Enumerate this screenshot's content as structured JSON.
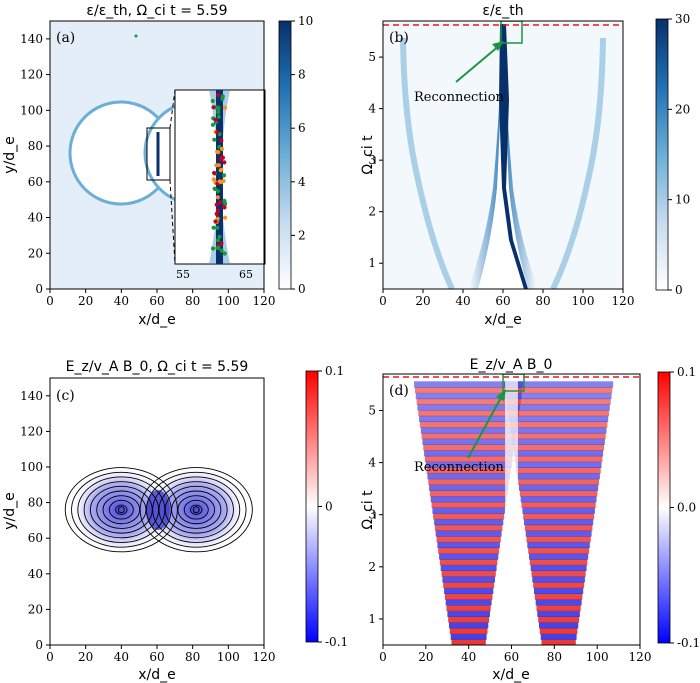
{
  "chart_data": [
    {
      "type": "heatmap",
      "panel_label": "(a)",
      "title": "ε/ε_th, Ω_ci t = 5.59",
      "xlabel": "x/d_e",
      "ylabel": "y/d_e",
      "xlim": [
        0,
        120
      ],
      "ylim": [
        0,
        150
      ],
      "xticks": [
        "0",
        "20",
        "40",
        "60",
        "80",
        "100",
        "120"
      ],
      "yticks": [
        "0",
        "20",
        "40",
        "60",
        "80",
        "100",
        "120",
        "140"
      ],
      "colorbar": {
        "range": [
          0,
          10
        ],
        "ticks": [
          "0",
          "2",
          "4",
          "6",
          "8",
          "10"
        ]
      },
      "colormap": "white-to-#08306b",
      "inset": {
        "xticks": [
          "55",
          "65"
        ]
      }
    },
    {
      "type": "heatmap",
      "panel_label": "(b)",
      "title": "ε/ε_th",
      "xlabel": "x/d_e",
      "ylabel": "Ω_ci t",
      "xlim": [
        0,
        120
      ],
      "ylim": [
        0.5,
        5.7
      ],
      "xticks": [
        "0",
        "20",
        "40",
        "60",
        "80",
        "100",
        "120"
      ],
      "yticks": [
        "1",
        "2",
        "3",
        "4",
        "5"
      ],
      "colorbar": {
        "range": [
          0,
          30
        ],
        "ticks": [
          "0",
          "10",
          "20",
          "30"
        ]
      },
      "colormap": "white-to-#08306b",
      "annotation": "Reconnection",
      "reference_line": {
        "y": 5.59,
        "color": "#e31a1c",
        "style": "dashed"
      }
    },
    {
      "type": "heatmap",
      "panel_label": "(c)",
      "title": "E_z/v_A B_0, Ω_ci t = 5.59",
      "xlabel": "x/d_e",
      "ylabel": "y/d_e",
      "xlim": [
        0,
        120
      ],
      "ylim": [
        0,
        150
      ],
      "xticks": [
        "0",
        "20",
        "40",
        "60",
        "80",
        "100",
        "120"
      ],
      "yticks": [
        "0",
        "20",
        "40",
        "60",
        "80",
        "100",
        "120",
        "140"
      ],
      "colorbar": {
        "range": [
          -0.1,
          0.1
        ],
        "ticks": [
          "-0.1",
          "0",
          "0.1"
        ]
      },
      "colormap": "bwr",
      "contour_centers": [
        [
          40,
          76
        ],
        [
          82,
          76
        ]
      ]
    },
    {
      "type": "heatmap",
      "panel_label": "(d)",
      "title": "E_z/v_A B_0",
      "xlabel": "x/d_e",
      "ylabel": "Ω_ci t",
      "xlim": [
        0,
        120
      ],
      "ylim": [
        0.5,
        5.7
      ],
      "xticks": [
        "0",
        "20",
        "40",
        "60",
        "80",
        "100",
        "120"
      ],
      "yticks": [
        "1",
        "2",
        "3",
        "4",
        "5"
      ],
      "colorbar": {
        "range": [
          -0.1,
          0.1
        ],
        "ticks": [
          "-0.1",
          "0.0",
          "0.1"
        ]
      },
      "colormap": "bwr",
      "annotation": "Reconnection",
      "reference_line": {
        "y": 5.59,
        "color": "#e31a1c",
        "style": "dashed"
      }
    }
  ],
  "colors": {
    "deep_blue": "#08306b",
    "mid_blue": "#4292c6",
    "light_blue": "#deebf7",
    "red": "#ff0000",
    "blue": "#0000ff",
    "green": "#1a9641",
    "orange": "#f7941d",
    "crimson": "#c0002a"
  }
}
